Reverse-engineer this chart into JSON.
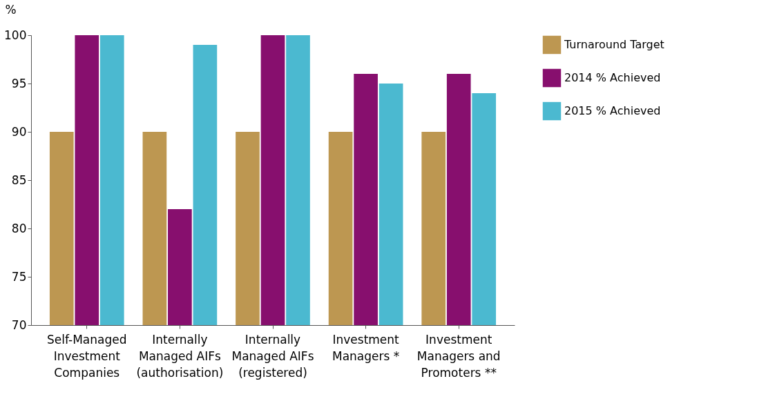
{
  "chart_data": {
    "type": "bar",
    "ylabel": "%",
    "categories": [
      "Self-Managed Investment Companies",
      "Internally Managed AIFs (authorisation)",
      "Internally Managed AIFs (registered)",
      "Investment Managers *",
      "Investment Managers and Promoters **"
    ],
    "series": [
      {
        "name": "Turnaround Target",
        "color": "#bd9751",
        "values": [
          90,
          90,
          90,
          90,
          90
        ]
      },
      {
        "name": "2014 % Achieved",
        "color": "#870f6e",
        "values": [
          100,
          82,
          100,
          96,
          96
        ]
      },
      {
        "name": "2015 % Achieved",
        "color": "#4bb9d0",
        "values": [
          100,
          99,
          100,
          95,
          94
        ]
      }
    ],
    "ylim": [
      70,
      100
    ],
    "yticks": [
      70,
      75,
      80,
      85,
      90,
      95,
      100
    ],
    "grid": false,
    "legend": "right"
  }
}
